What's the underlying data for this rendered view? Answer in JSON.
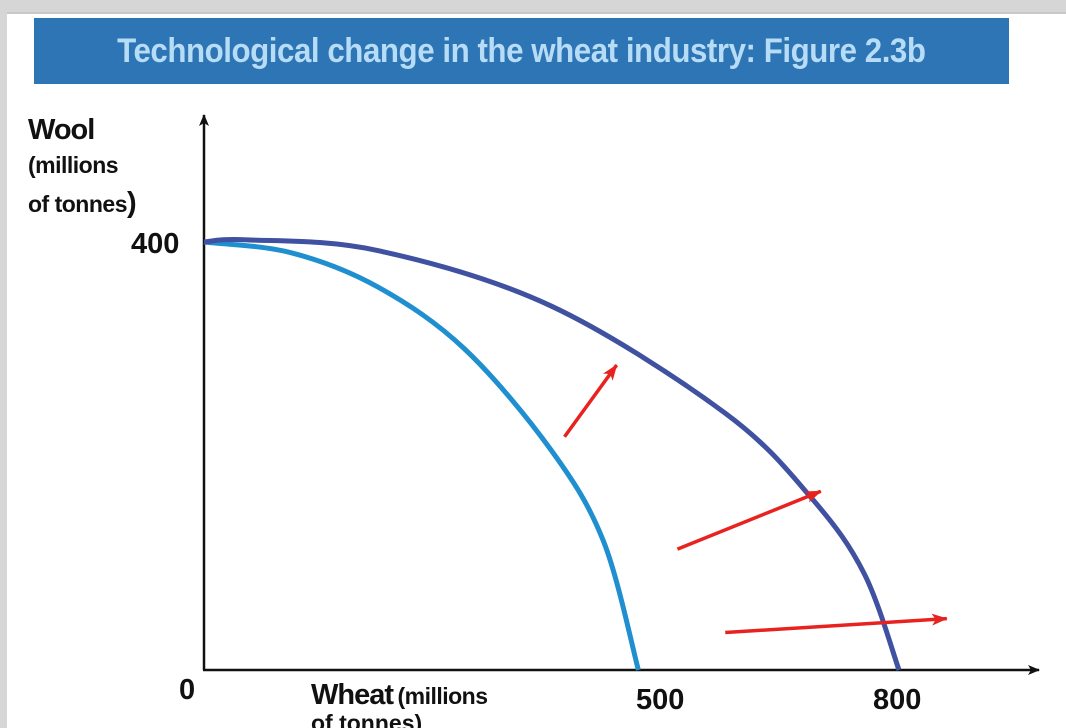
{
  "title": "Technological change in the wheat industry: Figure 2.3b",
  "colors": {
    "title_bar": "#2e75b6",
    "title_text": "#b7dcf6",
    "original_ppf": "#1f8fd0",
    "new_ppf": "#3f51a0",
    "arrows": "#e8231f",
    "axis": "#111111"
  },
  "chart_data": {
    "type": "line",
    "title": "Technological change in the wheat industry: Figure 2.3b",
    "ylabel": {
      "main": "Wool",
      "line2": "(millions",
      "line3": "of tonnes",
      "close_paren": ")"
    },
    "xlabel": {
      "main": "Wheat",
      "rest": "(millions",
      "line2": "of tonnes)"
    },
    "xlim": [
      0,
      1000
    ],
    "ylim": [
      0,
      550
    ],
    "y_ticks": [
      {
        "value": 0,
        "label": "0"
      },
      {
        "value": 400,
        "label": "400"
      }
    ],
    "x_ticks": [
      {
        "value": 500,
        "label": "500"
      },
      {
        "value": 800,
        "label": "800"
      }
    ],
    "series": [
      {
        "name": "original-ppf",
        "points": [
          [
            0,
            400
          ],
          [
            100,
            390
          ],
          [
            200,
            358
          ],
          [
            300,
            300
          ],
          [
            400,
            205
          ],
          [
            460,
            120
          ],
          [
            500,
            0
          ]
        ]
      },
      {
        "name": "new-ppf",
        "points": [
          [
            0,
            400
          ],
          [
            50,
            402
          ],
          [
            200,
            392
          ],
          [
            400,
            340
          ],
          [
            600,
            240
          ],
          [
            700,
            160
          ],
          [
            760,
            90
          ],
          [
            800,
            0
          ]
        ]
      }
    ],
    "arrows": [
      {
        "from": [
          415,
          218
        ],
        "to": [
          475,
          285
        ]
      },
      {
        "from": [
          545,
          113
        ],
        "to": [
          710,
          167
        ]
      },
      {
        "from": [
          600,
          35
        ],
        "to": [
          855,
          48
        ]
      }
    ]
  }
}
